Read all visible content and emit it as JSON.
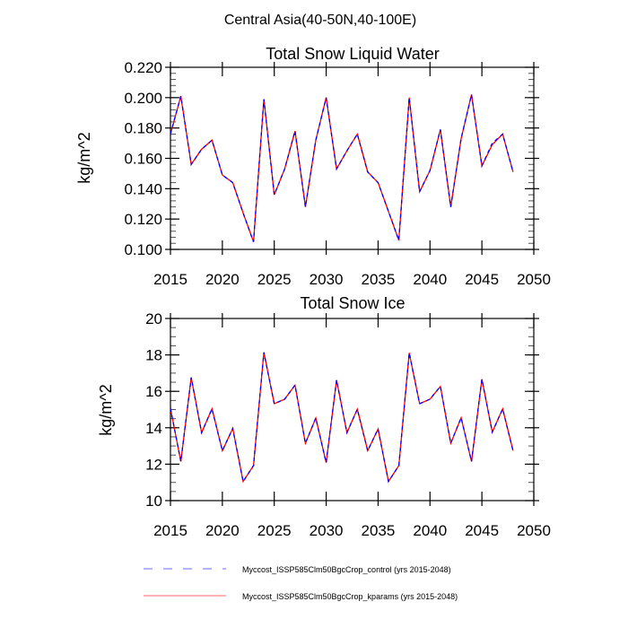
{
  "suptitle": "Central Asia(40-50N,40-100E)",
  "colors": {
    "control": "#0000ff",
    "kparams": "#ff0000",
    "axis": "#000000"
  },
  "legend": [
    {
      "label": "Myccost_ISSP585Clm50BgcCrop_control (yrs 2015-2048)",
      "style": "dashed",
      "color": "#0000ff"
    },
    {
      "label": "Myccost_ISSP585Clm50BgcCrop_kparams (yrs 2015-2048)",
      "style": "solid",
      "color": "#ff0000"
    }
  ],
  "chart_data": [
    {
      "type": "line",
      "title": "Total Snow Liquid Water",
      "xlabel": "",
      "ylabel": "kg/m^2",
      "xlim": [
        2015,
        2050
      ],
      "ylim": [
        0.1,
        0.22
      ],
      "xticks": [
        "2015",
        "2020",
        "2025",
        "2030",
        "2035",
        "2040",
        "2045",
        "2050"
      ],
      "xtick_values": [
        2015,
        2020,
        2025,
        2030,
        2035,
        2040,
        2045,
        2050
      ],
      "yticks": [
        "0.100",
        "0.120",
        "0.140",
        "0.160",
        "0.180",
        "0.200",
        "0.220"
      ],
      "ytick_values": [
        0.1,
        0.12,
        0.14,
        0.16,
        0.18,
        0.2,
        0.22
      ],
      "yminor_step": 0.004,
      "x": [
        2015,
        2016,
        2017,
        2018,
        2019,
        2020,
        2021,
        2022,
        2023,
        2024,
        2025,
        2026,
        2027,
        2028,
        2029,
        2030,
        2031,
        2032,
        2033,
        2034,
        2035,
        2036,
        2037,
        2038,
        2039,
        2040,
        2041,
        2042,
        2043,
        2044,
        2045,
        2046,
        2047,
        2048
      ],
      "series": [
        {
          "name": "Myccost_ISSP585Clm50BgcCrop_control",
          "values": [
            0.176,
            0.201,
            0.156,
            0.166,
            0.172,
            0.149,
            0.144,
            0.124,
            0.105,
            0.199,
            0.136,
            0.153,
            0.178,
            0.128,
            0.172,
            0.2,
            0.153,
            0.165,
            0.176,
            0.151,
            0.144,
            0.125,
            0.106,
            0.2,
            0.138,
            0.152,
            0.179,
            0.128,
            0.173,
            0.202,
            0.155,
            0.17,
            0.176,
            0.151
          ]
        },
        {
          "name": "Myccost_ISSP585Clm50BgcCrop_kparams",
          "values": [
            0.176,
            0.201,
            0.156,
            0.166,
            0.172,
            0.149,
            0.144,
            0.124,
            0.105,
            0.199,
            0.136,
            0.153,
            0.178,
            0.128,
            0.172,
            0.2,
            0.153,
            0.165,
            0.176,
            0.151,
            0.144,
            0.125,
            0.106,
            0.2,
            0.138,
            0.152,
            0.179,
            0.128,
            0.173,
            0.202,
            0.155,
            0.169,
            0.176,
            0.151
          ]
        }
      ]
    },
    {
      "type": "line",
      "title": "Total Snow Ice",
      "xlabel": "",
      "ylabel": "kg/m^2",
      "xlim": [
        2015,
        2050
      ],
      "ylim": [
        10,
        20
      ],
      "xticks": [
        "2015",
        "2020",
        "2025",
        "2030",
        "2035",
        "2040",
        "2045",
        "2050"
      ],
      "xtick_values": [
        2015,
        2020,
        2025,
        2030,
        2035,
        2040,
        2045,
        2050
      ],
      "yticks": [
        "10",
        "12",
        "14",
        "16",
        "18",
        "20"
      ],
      "ytick_values": [
        10,
        12,
        14,
        16,
        18,
        20
      ],
      "yminor_step": 0.5,
      "x": [
        2015,
        2016,
        2017,
        2018,
        2019,
        2020,
        2021,
        2022,
        2023,
        2024,
        2025,
        2026,
        2027,
        2028,
        2029,
        2030,
        2031,
        2032,
        2033,
        2034,
        2035,
        2036,
        2037,
        2038,
        2039,
        2040,
        2041,
        2042,
        2043,
        2044,
        2045,
        2046,
        2047,
        2048
      ],
      "series": [
        {
          "name": "Myccost_ISSP585Clm50BgcCrop_control",
          "values": [
            15.07,
            12.15,
            16.76,
            13.73,
            15.04,
            12.74,
            13.96,
            11.05,
            11.92,
            18.14,
            15.32,
            15.57,
            16.34,
            13.15,
            14.53,
            12.08,
            16.62,
            13.73,
            15.02,
            12.74,
            13.93,
            11.05,
            11.92,
            18.11,
            15.32,
            15.57,
            16.27,
            13.15,
            14.55,
            12.15,
            16.67,
            13.76,
            15.04,
            12.74
          ]
        },
        {
          "name": "Myccost_ISSP585Clm50BgcCrop_kparams",
          "values": [
            15.07,
            12.15,
            16.76,
            13.73,
            15.04,
            12.74,
            13.96,
            11.05,
            11.92,
            18.14,
            15.32,
            15.57,
            16.34,
            13.15,
            14.53,
            12.08,
            16.62,
            13.73,
            15.02,
            12.74,
            13.93,
            11.05,
            11.92,
            18.11,
            15.32,
            15.57,
            16.27,
            13.15,
            14.55,
            12.15,
            16.67,
            13.76,
            15.04,
            12.74
          ]
        }
      ]
    }
  ]
}
